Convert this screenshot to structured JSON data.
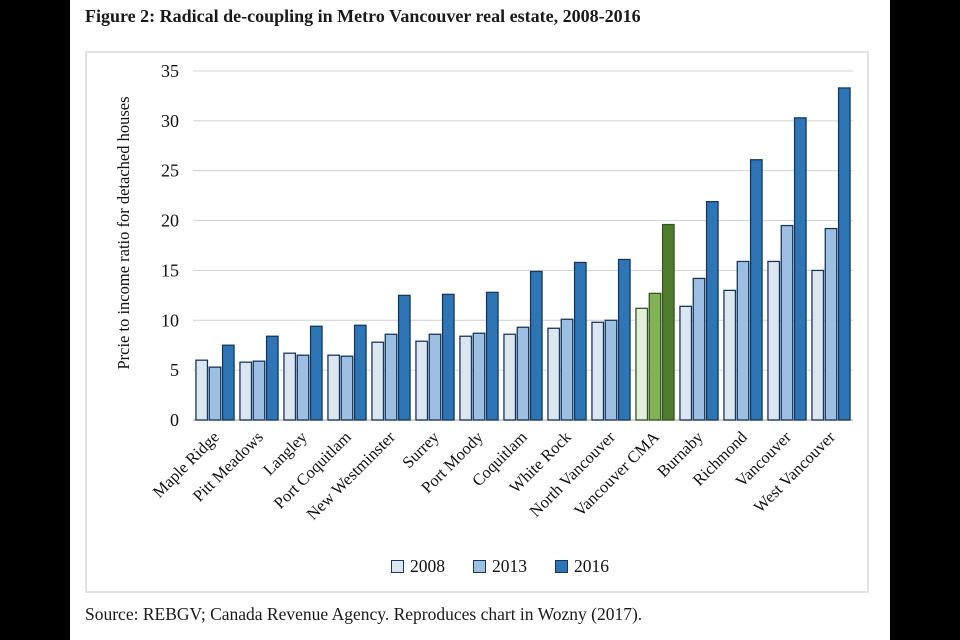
{
  "figure": {
    "title": "Figure 2: Radical de-coupling in Metro Vancouver real estate, 2008-2016",
    "source": "Source: REBGV; Canada Revenue Agency. Reproduces chart in Wozny (2017)."
  },
  "colors": {
    "background": "#ffffff",
    "letterbox": "#000000",
    "text": "#1a1a1a",
    "frame_border": "#e2e2e2",
    "gridline": "#d6d6d6",
    "baseline": "#c4c4c4"
  },
  "chart_data": {
    "type": "bar",
    "title": "Figure 2: Radical de-coupling in Metro Vancouver real estate, 2008-2016",
    "xlabel": "",
    "ylabel": "Prcie to income ratio for detached houses",
    "ylim": [
      0,
      35
    ],
    "ytick_interval": 5,
    "grid": true,
    "legend_position": "bottom-center",
    "categories": [
      "Maple Ridge",
      "Pitt Meadows",
      "Langley",
      "Port Coquitlam",
      "New Westminster",
      "Surrey",
      "Port Moody",
      "Coquitlam",
      "White Rock",
      "North Vancouver",
      "Vancouver CMA",
      "Burnaby",
      "Richmond",
      "Vancouver",
      "West Vancouver"
    ],
    "series": [
      {
        "name": "2008",
        "fill": "#dce6f1",
        "highlight_fill": "#e2efda",
        "values": [
          6.0,
          5.8,
          6.7,
          6.5,
          7.8,
          7.9,
          8.4,
          8.6,
          9.2,
          9.8,
          11.2,
          11.4,
          13.0,
          15.9,
          15.0
        ]
      },
      {
        "name": "2013",
        "fill": "#9cbfe2",
        "highlight_fill": "#82b157",
        "values": [
          5.3,
          5.9,
          6.5,
          6.4,
          8.6,
          8.6,
          8.7,
          9.3,
          10.1,
          10.0,
          12.7,
          14.2,
          15.9,
          19.5,
          19.2
        ]
      },
      {
        "name": "2016",
        "fill": "#2e75b6",
        "highlight_fill": "#507c2e",
        "values": [
          7.5,
          8.4,
          9.4,
          9.5,
          12.5,
          12.6,
          12.8,
          14.9,
          15.8,
          16.1,
          19.6,
          21.9,
          26.1,
          30.3,
          33.3
        ]
      }
    ],
    "highlight_category": "Vancouver CMA",
    "bar_stroke": "#17375e",
    "bar_stroke_highlight": "#375623"
  }
}
